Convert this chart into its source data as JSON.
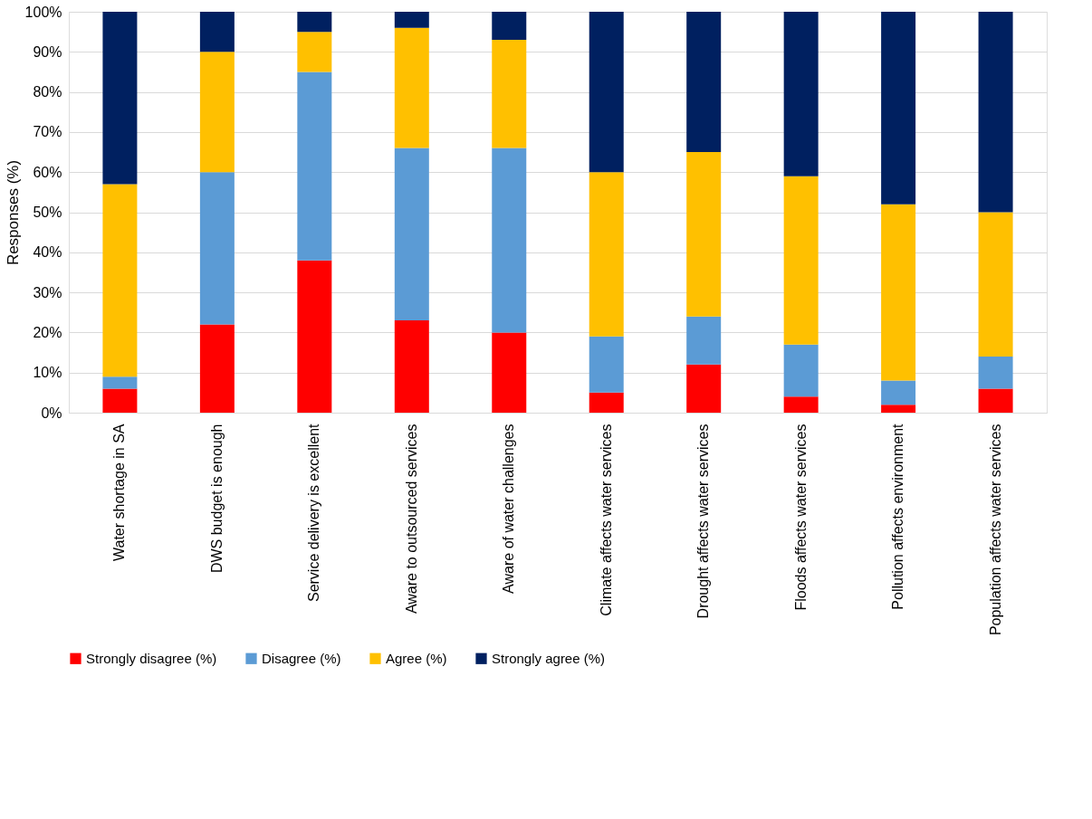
{
  "chart_data": {
    "type": "bar",
    "stacked": true,
    "ylabel": "Responses (%)",
    "categories": [
      "Water shortage in SA",
      "DWS budget is enough",
      "Service delivery is excellent",
      "Aware to outsourced services",
      "Aware of water challenges",
      "Climate affects water services",
      "Drought affects water services",
      "Floods affects water services",
      "Pollution affects environment",
      "Population affects water services"
    ],
    "series": [
      {
        "name": "Strongly disagree (%)",
        "color": "#ff0000",
        "values": [
          6,
          22,
          38,
          23,
          20,
          5,
          12,
          4,
          2,
          6
        ]
      },
      {
        "name": "Disagree (%)",
        "color": "#5b9bd5",
        "values": [
          3,
          38,
          47,
          43,
          46,
          14,
          12,
          13,
          6,
          8
        ]
      },
      {
        "name": "Agree (%)",
        "color": "#ffc000",
        "values": [
          48,
          30,
          10,
          30,
          27,
          41,
          41,
          42,
          44,
          36
        ]
      },
      {
        "name": "Strongly agree (%)",
        "color": "#002060",
        "values": [
          43,
          10,
          5,
          4,
          7,
          40,
          35,
          41,
          48,
          50
        ]
      }
    ],
    "ylim": [
      0,
      100
    ],
    "yticks": [
      {
        "value": 0,
        "label": "0%"
      },
      {
        "value": 10,
        "label": "10%"
      },
      {
        "value": 20,
        "label": "20%"
      },
      {
        "value": 30,
        "label": "30%"
      },
      {
        "value": 40,
        "label": "40%"
      },
      {
        "value": 50,
        "label": "50%"
      },
      {
        "value": 60,
        "label": "60%"
      },
      {
        "value": 70,
        "label": "70%"
      },
      {
        "value": 80,
        "label": "80%"
      },
      {
        "value": 90,
        "label": "90%"
      },
      {
        "value": 100,
        "label": "100%"
      }
    ],
    "grid": "y",
    "legend": "bottom"
  }
}
